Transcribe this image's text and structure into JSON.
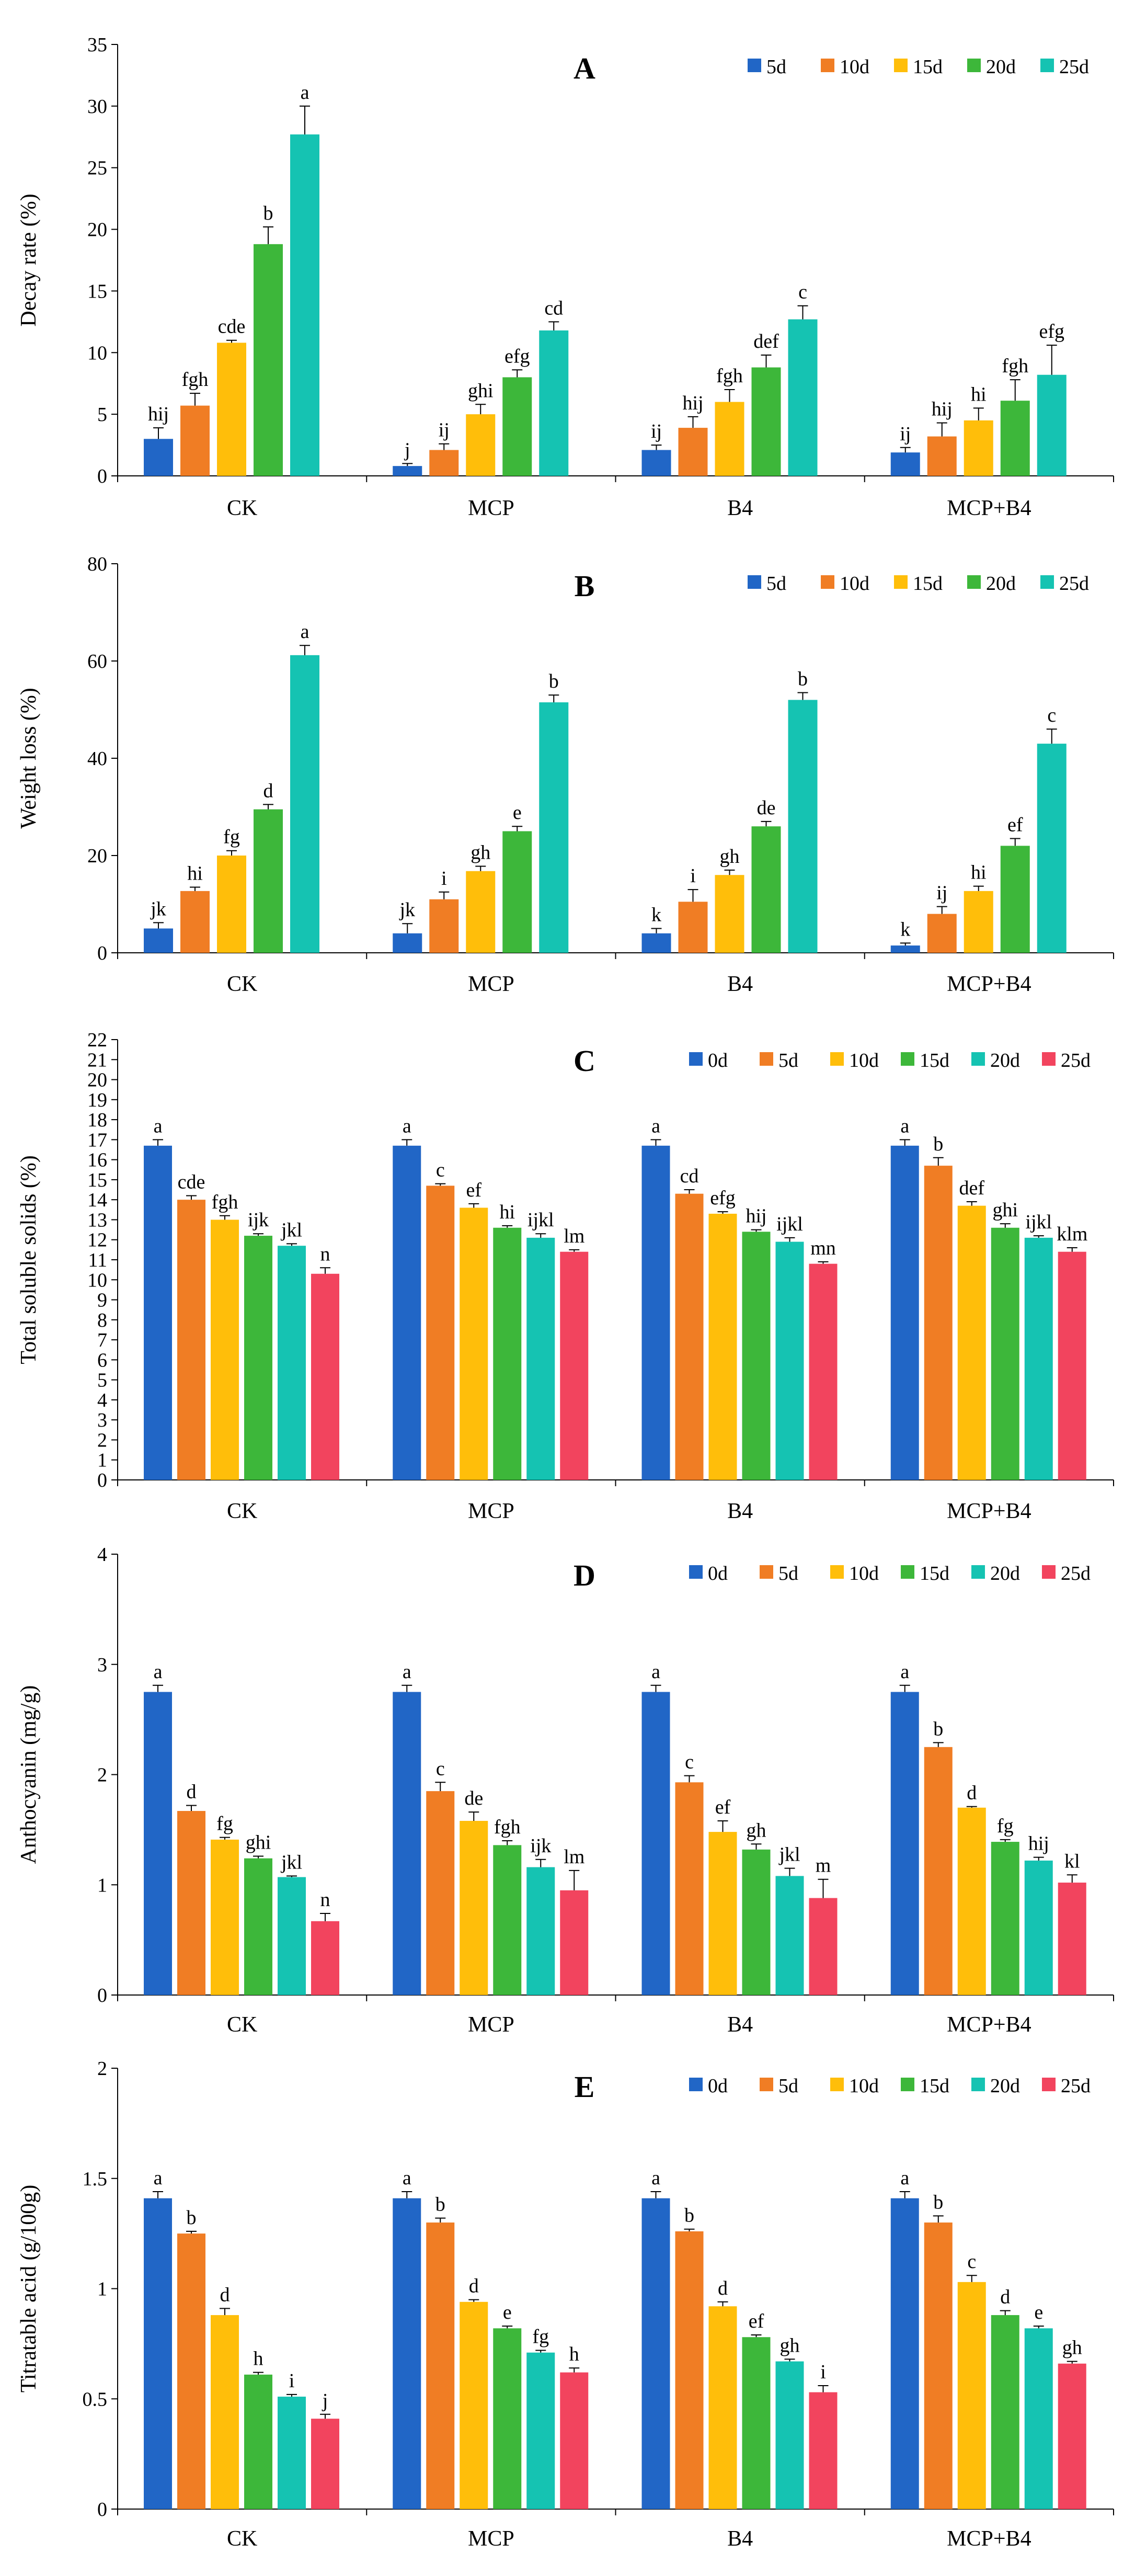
{
  "colors": {
    "blue": "#2166C6",
    "orange": "#F07D24",
    "yellow": "#FFBE0A",
    "green": "#3DB73A",
    "teal": "#15C3B2",
    "red": "#F2445E"
  },
  "chart_data": [
    {
      "type": "bar",
      "title": "A",
      "ylabel": "Decay rate (%)",
      "ylim": [
        0,
        35
      ],
      "yticks": [
        0,
        5,
        10,
        15,
        20,
        25,
        30,
        35
      ],
      "ytick_labels": [
        "0",
        "5",
        "10",
        "15",
        "20",
        "25",
        "30",
        "35"
      ],
      "categories": [
        "CK",
        "MCP",
        "B4",
        "MCP+B4"
      ],
      "series": [
        {
          "name": "5d",
          "color": "blue",
          "values": [
            3.0,
            0.8,
            2.1,
            1.9
          ],
          "errors": [
            0.9,
            0.2,
            0.4,
            0.4
          ],
          "letters": [
            "hij",
            "j",
            "ij",
            "ij"
          ]
        },
        {
          "name": "10d",
          "color": "orange",
          "values": [
            5.7,
            2.1,
            3.9,
            3.2
          ],
          "errors": [
            1.0,
            0.5,
            0.9,
            1.1
          ],
          "letters": [
            "fgh",
            "ij",
            "hij",
            "hij"
          ]
        },
        {
          "name": "15d",
          "color": "yellow",
          "values": [
            10.8,
            5.0,
            6.0,
            4.5
          ],
          "errors": [
            0.2,
            0.8,
            1.0,
            1.0
          ],
          "letters": [
            "cde",
            "ghi",
            "fgh",
            "hi"
          ]
        },
        {
          "name": "20d",
          "color": "green",
          "values": [
            18.8,
            8.0,
            8.8,
            6.1
          ],
          "errors": [
            1.4,
            0.6,
            1.0,
            1.7
          ],
          "letters": [
            "b",
            "efg",
            "def",
            "fgh"
          ]
        },
        {
          "name": "25d",
          "color": "teal",
          "values": [
            27.7,
            11.8,
            12.7,
            8.2
          ],
          "errors": [
            2.3,
            0.7,
            1.1,
            2.4
          ],
          "letters": [
            "a",
            "cd",
            "c",
            "efg"
          ]
        }
      ]
    },
    {
      "type": "bar",
      "title": "B",
      "ylabel": "Weight loss (%)",
      "ylim": [
        0,
        80
      ],
      "yticks": [
        0,
        20,
        40,
        60,
        80
      ],
      "ytick_labels": [
        "0",
        "20",
        "40",
        "60",
        "80"
      ],
      "categories": [
        "CK",
        "MCP",
        "B4",
        "MCP+B4"
      ],
      "series": [
        {
          "name": "5d",
          "color": "blue",
          "values": [
            5.0,
            4.0,
            4.0,
            1.5
          ],
          "errors": [
            1.2,
            2.0,
            1.0,
            0.5
          ],
          "letters": [
            "jk",
            "jk",
            "k",
            "k"
          ]
        },
        {
          "name": "10d",
          "color": "orange",
          "values": [
            12.7,
            11.0,
            10.5,
            8.0
          ],
          "errors": [
            0.8,
            1.5,
            2.5,
            1.5
          ],
          "letters": [
            "hi",
            "i",
            "i",
            "ij"
          ]
        },
        {
          "name": "15d",
          "color": "yellow",
          "values": [
            20.0,
            16.8,
            16.0,
            12.7
          ],
          "errors": [
            1.0,
            1.0,
            1.0,
            1.0
          ],
          "letters": [
            "fg",
            "gh",
            "gh",
            "hi"
          ]
        },
        {
          "name": "20d",
          "color": "green",
          "values": [
            29.5,
            25.0,
            26.0,
            22.0
          ],
          "errors": [
            1.0,
            1.0,
            1.0,
            1.5
          ],
          "letters": [
            "d",
            "e",
            "de",
            "ef"
          ]
        },
        {
          "name": "25d",
          "color": "teal",
          "values": [
            61.2,
            51.5,
            52.0,
            43.0
          ],
          "errors": [
            2.0,
            1.5,
            1.5,
            3.0
          ],
          "letters": [
            "a",
            "b",
            "b",
            "c"
          ]
        }
      ]
    },
    {
      "type": "bar",
      "title": "C",
      "ylabel": "Total soluble solids (%)",
      "ylim": [
        0,
        22
      ],
      "yticks": [
        0,
        1,
        2,
        3,
        4,
        5,
        6,
        7,
        8,
        9,
        10,
        11,
        12,
        13,
        14,
        15,
        16,
        17,
        18,
        19,
        20,
        21,
        22
      ],
      "ytick_labels": [
        "0",
        "1",
        "2",
        "3",
        "4",
        "5",
        "6",
        "7",
        "8",
        "9",
        "10",
        "11",
        "12",
        "13",
        "14",
        "15",
        "16",
        "17",
        "18",
        "19",
        "20",
        "21",
        "22"
      ],
      "categories": [
        "CK",
        "MCP",
        "B4",
        "MCP+B4"
      ],
      "series": [
        {
          "name": "0d",
          "color": "blue",
          "values": [
            16.7,
            16.7,
            16.7,
            16.7
          ],
          "errors": [
            0.3,
            0.3,
            0.3,
            0.3
          ],
          "letters": [
            "a",
            "a",
            "a",
            "a"
          ]
        },
        {
          "name": "5d",
          "color": "orange",
          "values": [
            14.0,
            14.7,
            14.3,
            15.7
          ],
          "errors": [
            0.2,
            0.1,
            0.2,
            0.4
          ],
          "letters": [
            "cde",
            "c",
            "cd",
            "b"
          ]
        },
        {
          "name": "10d",
          "color": "yellow",
          "values": [
            13.0,
            13.6,
            13.3,
            13.7
          ],
          "errors": [
            0.2,
            0.2,
            0.1,
            0.2
          ],
          "letters": [
            "fgh",
            "ef",
            "efg",
            "def"
          ]
        },
        {
          "name": "15d",
          "color": "green",
          "values": [
            12.2,
            12.6,
            12.4,
            12.6
          ],
          "errors": [
            0.1,
            0.1,
            0.1,
            0.2
          ],
          "letters": [
            "ijk",
            "hi",
            "hij",
            "ghi"
          ]
        },
        {
          "name": "20d",
          "color": "teal",
          "values": [
            11.7,
            12.1,
            11.9,
            12.1
          ],
          "errors": [
            0.1,
            0.2,
            0.2,
            0.1
          ],
          "letters": [
            "jkl",
            "ijkl",
            "ijkl",
            "ijkl"
          ]
        },
        {
          "name": "25d",
          "color": "red",
          "values": [
            10.3,
            11.4,
            10.8,
            11.4
          ],
          "errors": [
            0.3,
            0.1,
            0.1,
            0.2
          ],
          "letters": [
            "n",
            "lm",
            "mn",
            "klm"
          ]
        }
      ]
    },
    {
      "type": "bar",
      "title": "D",
      "ylabel": "Anthocyanin (mg/g)",
      "ylim": [
        0,
        4
      ],
      "yticks": [
        0,
        1,
        2,
        3,
        4
      ],
      "ytick_labels": [
        "0",
        "1",
        "2",
        "3",
        "4"
      ],
      "categories": [
        "CK",
        "MCP",
        "B4",
        "MCP+B4"
      ],
      "series": [
        {
          "name": "0d",
          "color": "blue",
          "values": [
            2.75,
            2.75,
            2.75,
            2.75
          ],
          "errors": [
            0.06,
            0.06,
            0.06,
            0.06
          ],
          "letters": [
            "a",
            "a",
            "a",
            "a"
          ]
        },
        {
          "name": "5d",
          "color": "orange",
          "values": [
            1.67,
            1.85,
            1.93,
            2.25
          ],
          "errors": [
            0.05,
            0.08,
            0.06,
            0.04
          ],
          "letters": [
            "d",
            "c",
            "c",
            "b"
          ]
        },
        {
          "name": "10d",
          "color": "yellow",
          "values": [
            1.41,
            1.58,
            1.48,
            1.7
          ],
          "errors": [
            0.02,
            0.08,
            0.1,
            0.01
          ],
          "letters": [
            "fg",
            "de",
            "ef",
            "d"
          ]
        },
        {
          "name": "15d",
          "color": "green",
          "values": [
            1.24,
            1.36,
            1.32,
            1.39
          ],
          "errors": [
            0.02,
            0.04,
            0.05,
            0.02
          ],
          "letters": [
            "ghi",
            "fgh",
            "gh",
            "fg"
          ]
        },
        {
          "name": "20d",
          "color": "teal",
          "values": [
            1.07,
            1.16,
            1.08,
            1.22
          ],
          "errors": [
            0.01,
            0.07,
            0.07,
            0.03
          ],
          "letters": [
            "jkl",
            "ijk",
            "jkl",
            "hij"
          ]
        },
        {
          "name": "25d",
          "color": "red",
          "values": [
            0.67,
            0.95,
            0.88,
            1.02
          ],
          "errors": [
            0.07,
            0.18,
            0.17,
            0.07
          ],
          "letters": [
            "n",
            "lm",
            "m",
            "kl"
          ]
        }
      ]
    },
    {
      "type": "bar",
      "title": "E",
      "ylabel": "Titratable acid (g/100g)",
      "ylim": [
        0,
        2
      ],
      "yticks": [
        0,
        0.5,
        1,
        1.5,
        2
      ],
      "ytick_labels": [
        "0",
        "0.5",
        "1",
        "1.5",
        "2"
      ],
      "categories": [
        "CK",
        "MCP",
        "B4",
        "MCP+B4"
      ],
      "series": [
        {
          "name": "0d",
          "color": "blue",
          "values": [
            1.41,
            1.41,
            1.41,
            1.41
          ],
          "errors": [
            0.03,
            0.03,
            0.03,
            0.03
          ],
          "letters": [
            "a",
            "a",
            "a",
            "a"
          ]
        },
        {
          "name": "5d",
          "color": "orange",
          "values": [
            1.25,
            1.3,
            1.26,
            1.3
          ],
          "errors": [
            0.01,
            0.02,
            0.01,
            0.03
          ],
          "letters": [
            "b",
            "b",
            "b",
            "b"
          ]
        },
        {
          "name": "10d",
          "color": "yellow",
          "values": [
            0.88,
            0.94,
            0.92,
            1.03
          ],
          "errors": [
            0.03,
            0.01,
            0.02,
            0.03
          ],
          "letters": [
            "d",
            "d",
            "d",
            "c"
          ]
        },
        {
          "name": "15d",
          "color": "green",
          "values": [
            0.61,
            0.82,
            0.78,
            0.88
          ],
          "errors": [
            0.01,
            0.01,
            0.01,
            0.02
          ],
          "letters": [
            "h",
            "e",
            "ef",
            "d"
          ]
        },
        {
          "name": "20d",
          "color": "teal",
          "values": [
            0.51,
            0.71,
            0.67,
            0.82
          ],
          "errors": [
            0.01,
            0.01,
            0.01,
            0.01
          ],
          "letters": [
            "i",
            "fg",
            "gh",
            "e"
          ]
        },
        {
          "name": "25d",
          "color": "red",
          "values": [
            0.41,
            0.62,
            0.53,
            0.66
          ],
          "errors": [
            0.02,
            0.02,
            0.03,
            0.01
          ],
          "letters": [
            "j",
            "h",
            "i",
            "gh"
          ]
        }
      ]
    }
  ]
}
